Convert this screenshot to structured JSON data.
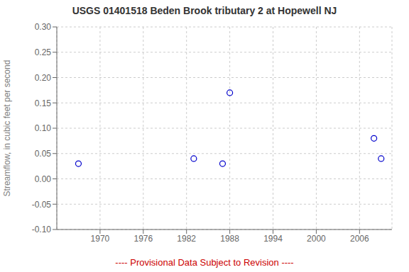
{
  "chart_data": {
    "type": "scatter",
    "title": "USGS 01401518 Beden Brook tributary 2 at Hopewell NJ",
    "y_label": "Streamflow, in cubic feet per second",
    "x": [
      1967,
      1983,
      1987,
      1988,
      2008,
      2009
    ],
    "values": [
      0.03,
      0.04,
      0.03,
      0.17,
      0.08,
      0.04
    ],
    "color": "#0000cc",
    "marker": "circle",
    "xlim": [
      1964.0,
      2010.5
    ],
    "ylim": [
      -0.1,
      0.3
    ],
    "xticks": [
      1970,
      1976,
      1982,
      1988,
      1994,
      2000,
      2006
    ],
    "yticks": [
      {
        "value": -0.1,
        "label": "-0.10"
      },
      -0.05,
      {
        "value": 0.0,
        "label": "0.00"
      },
      0.05,
      {
        "value": 0.1,
        "label": "0.10"
      },
      0.15,
      {
        "value": 0.2,
        "label": "0.20"
      },
      0.25,
      {
        "value": 0.3,
        "label": "0.30"
      }
    ],
    "grid": true,
    "annotations": [
      {
        "text": "---- Provisional Data Subject to Revision ----",
        "color": "#cc0000"
      }
    ]
  }
}
